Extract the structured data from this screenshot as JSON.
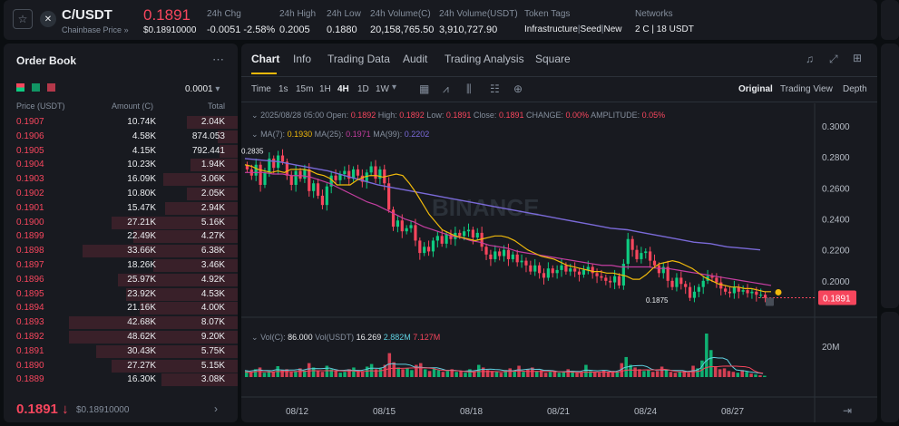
{
  "pair": {
    "symbol": "C/USDT",
    "source": "Chainbase Price",
    "price": "0.1891",
    "price_usd": "$0.18910000"
  },
  "stats": [
    {
      "label": "24h Chg",
      "value": "-0.0051 -2.58%",
      "color": "red"
    },
    {
      "label": "24h High",
      "value": "0.2005",
      "color": "white"
    },
    {
      "label": "24h Low",
      "value": "0.1880",
      "color": "white"
    },
    {
      "label": "24h Volume(C)",
      "value": "20,158,765.50",
      "color": "white"
    },
    {
      "label": "24h Volume(USDT)",
      "value": "3,910,727.90",
      "color": "white"
    }
  ],
  "token_tags": {
    "label": "Token Tags",
    "tags": [
      "Infrastructure",
      "Seed",
      "New"
    ]
  },
  "networks": {
    "label": "Networks",
    "value": "2 C | 18 USDT"
  },
  "orderbook": {
    "title": "Order Book",
    "precision": "0.0001",
    "headers": {
      "price": "Price (USDT)",
      "amount": "Amount (C)",
      "total": "Total"
    },
    "asks": [
      {
        "price": "0.1907",
        "amount": "10.74K",
        "total": "2.04K",
        "depth": 0.3
      },
      {
        "price": "0.1906",
        "amount": "4.58K",
        "total": "874.053",
        "depth": 0.12
      },
      {
        "price": "0.1905",
        "amount": "4.15K",
        "total": "792.441",
        "depth": 0.11
      },
      {
        "price": "0.1904",
        "amount": "10.23K",
        "total": "1.94K",
        "depth": 0.28
      },
      {
        "price": "0.1903",
        "amount": "16.09K",
        "total": "3.06K",
        "depth": 0.44
      },
      {
        "price": "0.1902",
        "amount": "10.80K",
        "total": "2.05K",
        "depth": 0.3
      },
      {
        "price": "0.1901",
        "amount": "15.47K",
        "total": "2.94K",
        "depth": 0.43
      },
      {
        "price": "0.1900",
        "amount": "27.21K",
        "total": "5.16K",
        "depth": 0.75
      },
      {
        "price": "0.1899",
        "amount": "22.49K",
        "total": "4.27K",
        "depth": 0.62
      },
      {
        "price": "0.1898",
        "amount": "33.66K",
        "total": "6.38K",
        "depth": 0.92
      },
      {
        "price": "0.1897",
        "amount": "18.26K",
        "total": "3.46K",
        "depth": 0.5
      },
      {
        "price": "0.1896",
        "amount": "25.97K",
        "total": "4.92K",
        "depth": 0.71
      },
      {
        "price": "0.1895",
        "amount": "23.92K",
        "total": "4.53K",
        "depth": 0.66
      },
      {
        "price": "0.1894",
        "amount": "21.16K",
        "total": "4.00K",
        "depth": 0.58
      },
      {
        "price": "0.1893",
        "amount": "42.68K",
        "total": "8.07K",
        "depth": 1.0
      },
      {
        "price": "0.1892",
        "amount": "48.62K",
        "total": "9.20K",
        "depth": 1.0
      },
      {
        "price": "0.1891",
        "amount": "30.43K",
        "total": "5.75K",
        "depth": 0.84
      },
      {
        "price": "0.1890",
        "amount": "27.27K",
        "total": "5.15K",
        "depth": 0.75
      },
      {
        "price": "0.1889",
        "amount": "16.30K",
        "total": "3.08K",
        "depth": 0.45
      }
    ],
    "last_price": "0.1891",
    "last_arrow": "↓",
    "last_usd": "$0.18910000"
  },
  "chart_tabs": [
    "Chart",
    "Info",
    "Trading Data",
    "Audit",
    "Trading Analysis",
    "Square"
  ],
  "timeframes": [
    "Time",
    "1s",
    "15m",
    "1H",
    "4H",
    "1D",
    "1W"
  ],
  "view_modes": [
    "Original",
    "Trading View",
    "Depth"
  ],
  "ohlc": {
    "date": "2025/08/28 05:00",
    "open_label": "Open:",
    "open": "0.1892",
    "high_label": "High:",
    "high": "0.1892",
    "low_label": "Low:",
    "low": "0.1891",
    "close_label": "Close:",
    "close": "0.1891",
    "change_label": "CHANGE:",
    "change": "0.00%",
    "amp_label": "AMPLITUDE:",
    "amp": "0.05%"
  },
  "ma": {
    "ma7_label": "MA(7):",
    "ma7": "0.1930",
    "ma25_label": "MA(25):",
    "ma25": "0.1971",
    "ma99_label": "MA(99):",
    "ma99": "0.2202"
  },
  "vol_info": {
    "label": "Vol(C):",
    "c": "86.000",
    "usdt_label": "Vol(USDT)",
    "usdt": "16.269",
    "v1": "2.882M",
    "v2": "7.127M"
  },
  "watermark": "BINANCE",
  "colors": {
    "up": "#0ecb81",
    "down": "#f6465d",
    "ma7": "#f0b90b",
    "ma25": "#c43ea0",
    "ma99": "#7a6ad8",
    "accent": "#f0b90b"
  },
  "chart_data": {
    "type": "candlestick",
    "y_ticks": [
      "0.3000",
      "0.2800",
      "0.2600",
      "0.2400",
      "0.2200",
      "0.2000"
    ],
    "ylim": [
      0.18,
      0.31
    ],
    "x_ticks": [
      "08/12",
      "08/15",
      "08/18",
      "08/21",
      "08/24",
      "08/27"
    ],
    "high_marker": "0.2835",
    "low_marker": "0.1875",
    "current_price": "0.1891",
    "vol_tick": "20M",
    "closes": [
      0.272,
      0.268,
      0.275,
      0.262,
      0.27,
      0.279,
      0.273,
      0.281,
      0.277,
      0.268,
      0.262,
      0.271,
      0.266,
      0.272,
      0.258,
      0.263,
      0.255,
      0.249,
      0.261,
      0.268,
      0.265,
      0.269,
      0.271,
      0.266,
      0.272,
      0.268,
      0.264,
      0.27,
      0.274,
      0.266,
      0.272,
      0.263,
      0.246,
      0.235,
      0.239,
      0.232,
      0.234,
      0.236,
      0.226,
      0.218,
      0.222,
      0.219,
      0.226,
      0.229,
      0.224,
      0.23,
      0.227,
      0.231,
      0.229,
      0.232,
      0.233,
      0.228,
      0.231,
      0.222,
      0.217,
      0.214,
      0.219,
      0.216,
      0.22,
      0.214,
      0.217,
      0.212,
      0.213,
      0.21,
      0.206,
      0.21,
      0.205,
      0.202,
      0.208,
      0.205,
      0.207,
      0.21,
      0.206,
      0.208,
      0.206,
      0.204,
      0.207,
      0.209,
      0.205,
      0.203,
      0.202,
      0.2,
      0.199,
      0.203,
      0.197,
      0.211,
      0.227,
      0.22,
      0.214,
      0.218,
      0.219,
      0.213,
      0.21,
      0.205,
      0.209,
      0.2,
      0.196,
      0.202,
      0.198,
      0.196,
      0.189,
      0.193,
      0.196,
      0.2,
      0.203,
      0.202,
      0.199,
      0.195,
      0.193,
      0.192,
      0.196,
      0.193,
      0.194,
      0.192,
      0.193,
      0.191,
      0.191,
      0.189
    ],
    "ma7": [
      0.275,
      0.274,
      0.272,
      0.271,
      0.27,
      0.271,
      0.27,
      0.272,
      0.272,
      0.272,
      0.271,
      0.269,
      0.268,
      0.266,
      0.262,
      0.262,
      0.262,
      0.265,
      0.267,
      0.268,
      0.268,
      0.267,
      0.268,
      0.269,
      0.268,
      0.263,
      0.257,
      0.25,
      0.243,
      0.238,
      0.233,
      0.231,
      0.229,
      0.228,
      0.227,
      0.226,
      0.227,
      0.228,
      0.229,
      0.229,
      0.228,
      0.226,
      0.223,
      0.22,
      0.218,
      0.216,
      0.215,
      0.214,
      0.212,
      0.21,
      0.209,
      0.208,
      0.207,
      0.206,
      0.206,
      0.205,
      0.205,
      0.204,
      0.203,
      0.201,
      0.201,
      0.204,
      0.208,
      0.211,
      0.212,
      0.213,
      0.212,
      0.21,
      0.208,
      0.205,
      0.202,
      0.2,
      0.198,
      0.197,
      0.196,
      0.196,
      0.195,
      0.195,
      0.194,
      0.193,
      0.193
    ],
    "ma25": [
      0.27,
      0.27,
      0.27,
      0.269,
      0.269,
      0.268,
      0.268,
      0.267,
      0.265,
      0.263,
      0.26,
      0.257,
      0.254,
      0.251,
      0.249,
      0.246,
      0.243,
      0.24,
      0.238,
      0.235,
      0.233,
      0.231,
      0.229,
      0.228,
      0.226,
      0.225,
      0.223,
      0.222,
      0.221,
      0.219,
      0.218,
      0.217,
      0.216,
      0.215,
      0.214,
      0.213,
      0.212,
      0.211,
      0.21,
      0.21,
      0.209,
      0.209,
      0.209,
      0.209,
      0.208,
      0.208,
      0.207,
      0.206,
      0.205,
      0.204,
      0.203,
      0.202,
      0.201,
      0.2,
      0.199,
      0.198,
      0.197
    ],
    "ma99": [
      0.279,
      0.278,
      0.277,
      0.275,
      0.273,
      0.271,
      0.268,
      0.265,
      0.262,
      0.26,
      0.258,
      0.256,
      0.254,
      0.252,
      0.25,
      0.248,
      0.246,
      0.244,
      0.242,
      0.24,
      0.238,
      0.236,
      0.234,
      0.233,
      0.231,
      0.229,
      0.227,
      0.225,
      0.224,
      0.222,
      0.221,
      0.22
    ],
    "volumes": [
      0.15,
      0.12,
      0.18,
      0.22,
      0.1,
      0.14,
      0.12,
      0.25,
      0.16,
      0.18,
      0.12,
      0.14,
      0.2,
      0.15,
      0.32,
      0.22,
      0.14,
      0.12,
      0.26,
      0.18,
      0.14,
      0.1,
      0.12,
      0.18,
      0.22,
      0.16,
      0.12,
      0.24,
      0.3,
      0.18,
      0.2,
      0.28,
      0.55,
      0.34,
      0.22,
      0.18,
      0.2,
      0.16,
      0.28,
      0.32,
      0.18,
      0.14,
      0.2,
      0.16,
      0.12,
      0.14,
      0.18,
      0.12,
      0.14,
      0.1,
      0.18,
      0.12,
      0.28,
      0.22,
      0.16,
      0.14,
      0.12,
      0.1,
      0.16,
      0.2,
      0.14,
      0.26,
      0.12,
      0.18,
      0.22,
      0.14,
      0.16,
      0.1,
      0.12,
      0.14,
      0.1,
      0.12,
      0.18,
      0.14,
      0.1,
      0.12,
      0.28,
      0.14,
      0.12,
      0.1,
      0.16,
      0.12,
      0.14,
      0.12,
      0.32,
      0.46,
      0.28,
      0.22,
      0.18,
      0.14,
      0.16,
      0.12,
      0.14,
      0.24,
      0.18,
      0.12,
      0.1,
      0.12,
      0.14,
      0.1,
      0.26,
      0.2,
      0.38,
      1.0,
      0.62,
      0.24,
      0.18,
      0.2,
      0.14,
      0.12,
      0.1,
      0.16,
      0.12,
      0.08,
      0.06,
      0.04,
      0.03
    ]
  }
}
